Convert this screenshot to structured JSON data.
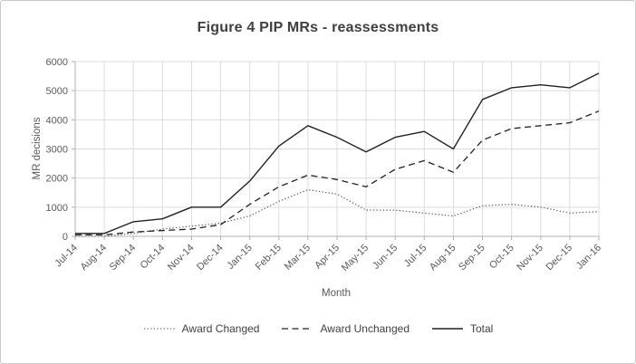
{
  "chart_data": {
    "type": "line",
    "title": "Figure 4 PIP MRs - reassessments",
    "xlabel": "Month",
    "ylabel": "MR decisions",
    "ylim": [
      0,
      6000
    ],
    "ytick_interval": 1000,
    "yticks": [
      "0",
      "1000",
      "2000",
      "3000",
      "4000",
      "5000",
      "6000"
    ],
    "grid": true,
    "legend_position": "bottom",
    "categories": [
      "Jul-14",
      "Aug-14",
      "Sep-14",
      "Oct-14",
      "Nov-14",
      "Dec-14",
      "Jan-15",
      "Feb-15",
      "Mar-15",
      "Apr-15",
      "May-15",
      "Jun-15",
      "Jul-15",
      "Aug-15",
      "Sep-15",
      "Oct-15",
      "Nov-15",
      "Dec-15",
      "Jan-16"
    ],
    "series": [
      {
        "name": "Award Changed",
        "style": "dotted",
        "color": "#4d4d4d",
        "values": [
          0,
          0,
          100,
          250,
          350,
          450,
          700,
          1200,
          1600,
          1450,
          900,
          900,
          800,
          700,
          1050,
          1100,
          1000,
          800,
          850
        ]
      },
      {
        "name": "Award Unchanged",
        "style": "dashed",
        "color": "#212121",
        "values": [
          50,
          50,
          150,
          200,
          250,
          400,
          1100,
          1700,
          2100,
          1950,
          1700,
          2300,
          2600,
          2200,
          3300,
          3700,
          3800,
          3900,
          4300
        ]
      },
      {
        "name": "Total",
        "style": "solid",
        "color": "#212121",
        "values": [
          100,
          100,
          500,
          600,
          1000,
          1000,
          1900,
          3100,
          3800,
          3400,
          2900,
          3400,
          3600,
          3000,
          4700,
          5100,
          5200,
          5100,
          5600
        ]
      }
    ]
  },
  "colors": {
    "title_text": "#3f3f3f",
    "axis_text": "#595959",
    "gridline": "#dcdcdc",
    "axis_line": "#b3b3b3"
  }
}
